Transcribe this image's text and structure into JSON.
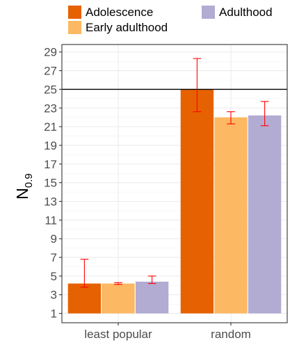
{
  "chart_data": {
    "type": "bar",
    "ylabel_main": "N",
    "ylabel_sub": "0.9",
    "categories": [
      "least popular",
      "random"
    ],
    "series": [
      {
        "name": "Adolescence",
        "color": "#e66101",
        "values": [
          4.2,
          25.0
        ],
        "err_low": [
          3.8,
          22.6
        ],
        "err_high": [
          6.8,
          28.3
        ]
      },
      {
        "name": "Early adulthood",
        "color": "#fdb863",
        "values": [
          4.2,
          22.0
        ],
        "err_low": [
          4.1,
          21.3
        ],
        "err_high": [
          4.3,
          22.6
        ]
      },
      {
        "name": "Adulthood",
        "color": "#b2abd2",
        "values": [
          4.4,
          22.2
        ],
        "err_low": [
          4.2,
          21.1
        ],
        "err_high": [
          5.0,
          23.7
        ]
      }
    ],
    "yticks": [
      1,
      3,
      5,
      7,
      9,
      11,
      13,
      15,
      17,
      19,
      21,
      23,
      25,
      27,
      29
    ],
    "ylim": [
      0.0,
      29.8
    ],
    "bar_base": 1,
    "hline": 25,
    "error_bar_color": "#ff0000",
    "grid": true,
    "legend_position": "top"
  }
}
